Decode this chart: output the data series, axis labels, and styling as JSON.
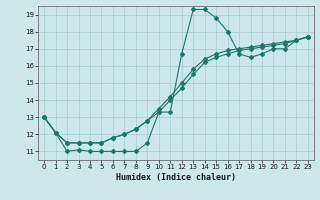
{
  "xlabel": "Humidex (Indice chaleur)",
  "ylabel": "",
  "bg_color": "#cce8e8",
  "grid_color": "#aacccc",
  "line_color": "#1a7a6a",
  "xlim": [
    -0.5,
    23.5
  ],
  "ylim": [
    10.5,
    19.5
  ],
  "xticks": [
    0,
    1,
    2,
    3,
    4,
    5,
    6,
    7,
    8,
    9,
    10,
    11,
    12,
    13,
    14,
    15,
    16,
    17,
    18,
    19,
    20,
    21,
    22,
    23
  ],
  "yticks": [
    11,
    12,
    13,
    14,
    15,
    16,
    17,
    18,
    19
  ],
  "line1_x": [
    0,
    1,
    2,
    3,
    4,
    5,
    6,
    7,
    8,
    9,
    10,
    11,
    12,
    13,
    14,
    15,
    16,
    17,
    18,
    19,
    20,
    21,
    22,
    23
  ],
  "line1_y": [
    13.0,
    12.1,
    11.0,
    11.1,
    11.0,
    11.0,
    11.0,
    11.0,
    11.0,
    11.5,
    13.3,
    13.3,
    16.7,
    19.3,
    19.3,
    18.8,
    18.0,
    16.7,
    16.5,
    16.7,
    17.0,
    17.0,
    17.5,
    17.7
  ],
  "line2_x": [
    0,
    1,
    2,
    3,
    4,
    5,
    6,
    7,
    8,
    9,
    10,
    11,
    12,
    13,
    14,
    15,
    16,
    17,
    18,
    19,
    20,
    21,
    22,
    23
  ],
  "line2_y": [
    13.0,
    12.1,
    11.5,
    11.5,
    11.5,
    11.5,
    11.8,
    12.0,
    12.3,
    12.8,
    13.5,
    14.2,
    15.0,
    15.8,
    16.4,
    16.7,
    16.9,
    17.0,
    17.1,
    17.2,
    17.3,
    17.4,
    17.5,
    17.7
  ],
  "line3_x": [
    0,
    1,
    2,
    3,
    4,
    5,
    6,
    7,
    8,
    9,
    10,
    11,
    12,
    13,
    14,
    15,
    16,
    17,
    18,
    19,
    20,
    21,
    22,
    23
  ],
  "line3_y": [
    13.0,
    12.1,
    11.5,
    11.5,
    11.5,
    11.5,
    11.8,
    12.0,
    12.3,
    12.8,
    13.3,
    14.0,
    14.7,
    15.5,
    16.2,
    16.5,
    16.7,
    16.9,
    17.0,
    17.1,
    17.2,
    17.3,
    17.5,
    17.7
  ],
  "tick_fontsize": 5,
  "xlabel_fontsize": 6,
  "marker_size": 2.0,
  "line_width": 0.8
}
